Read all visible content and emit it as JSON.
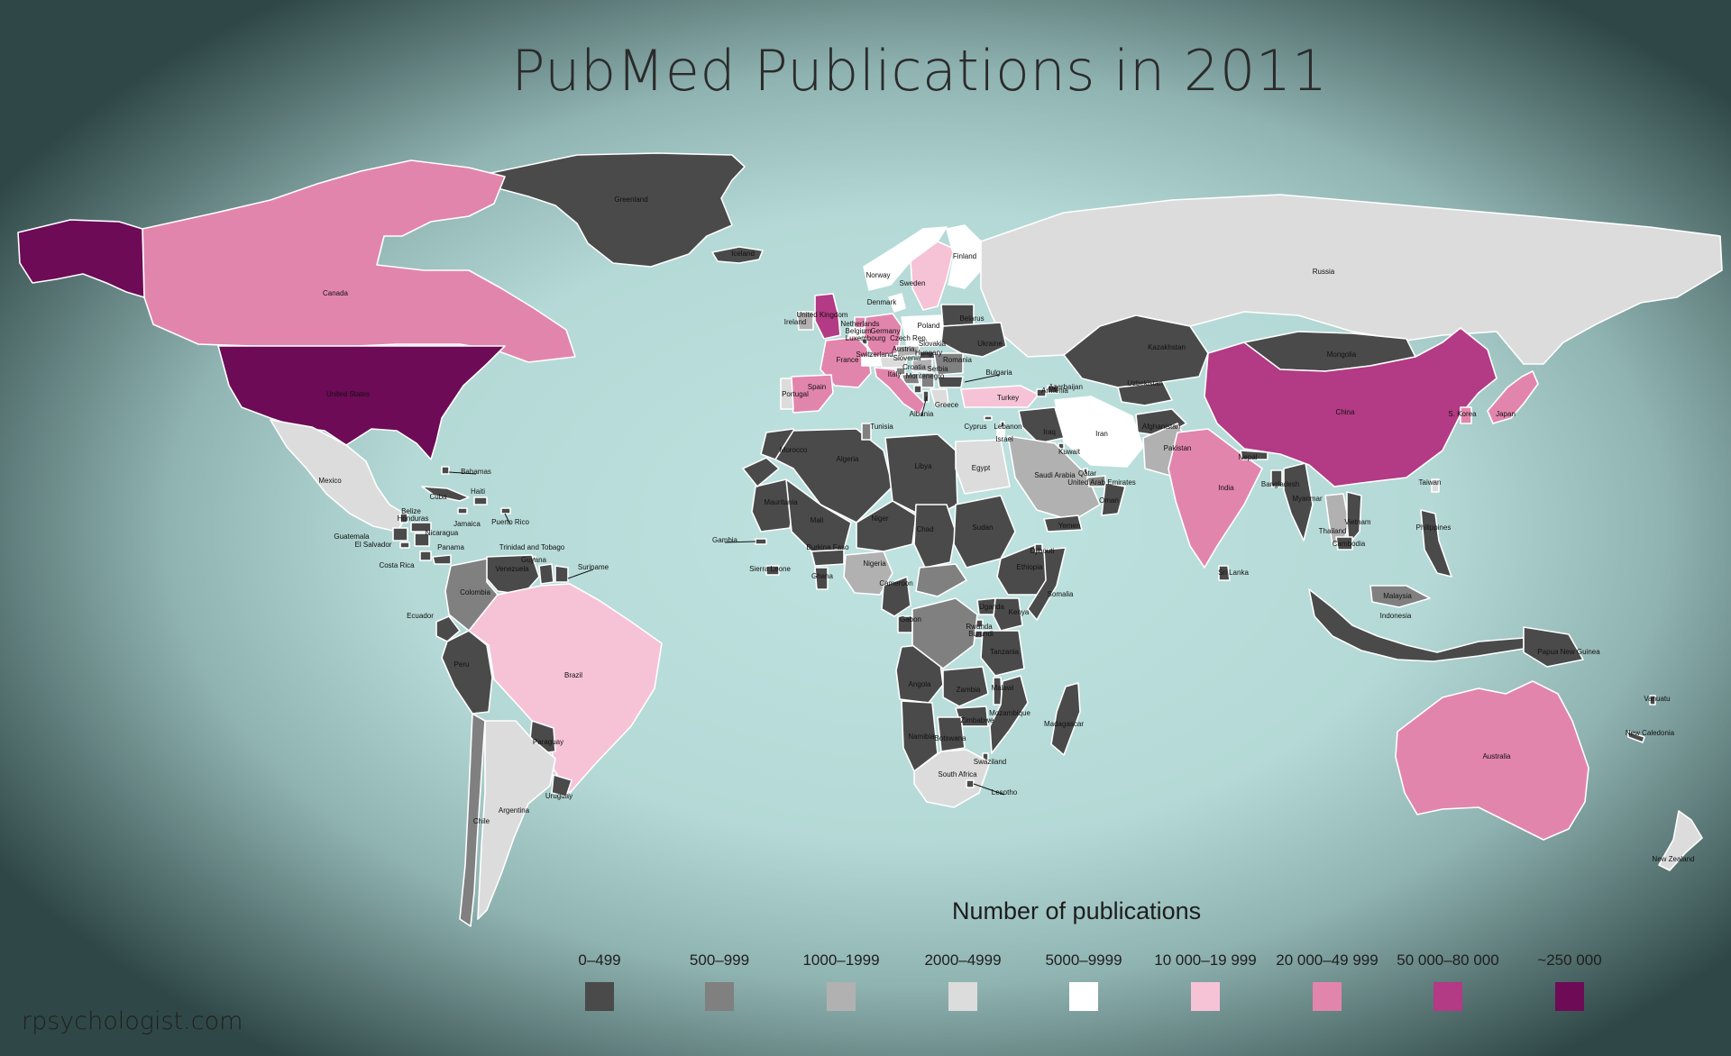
{
  "title": "PubMed Publications in 2011",
  "legend": {
    "title": "Number of publications",
    "bins": [
      {
        "label": "0–499",
        "color": "#4a4a4a"
      },
      {
        "label": "500–999",
        "color": "#808080"
      },
      {
        "label": "1000–1999",
        "color": "#b1b1b1"
      },
      {
        "label": "2000–4999",
        "color": "#dcdcdc"
      },
      {
        "label": "5000–9999",
        "color": "#ffffff"
      },
      {
        "label": "10 000–19 999",
        "color": "#f6c3d6"
      },
      {
        "label": "20 000–49 999",
        "color": "#e285ad"
      },
      {
        "label": "50 000–80 000",
        "color": "#b33a84"
      },
      {
        "label": "~250 000",
        "color": "#6d0b57"
      }
    ]
  },
  "credit": "rpsychologist.com",
  "countries": [
    {
      "name": "Greenland",
      "bin": 0
    },
    {
      "name": "Iceland",
      "bin": 0
    },
    {
      "name": "Canada",
      "bin": 6
    },
    {
      "name": "United States",
      "bin": 8
    },
    {
      "name": "Mexico",
      "bin": 3
    },
    {
      "name": "Bahamas",
      "bin": 0
    },
    {
      "name": "Cuba",
      "bin": 0
    },
    {
      "name": "Haiti",
      "bin": 0
    },
    {
      "name": "Belize",
      "bin": 0
    },
    {
      "name": "Honduras",
      "bin": 0
    },
    {
      "name": "Jamaica",
      "bin": 0
    },
    {
      "name": "Puerto Rico",
      "bin": 0
    },
    {
      "name": "Guatemala",
      "bin": 0
    },
    {
      "name": "Nicaragua",
      "bin": 0
    },
    {
      "name": "El Salvador",
      "bin": 0
    },
    {
      "name": "Panama",
      "bin": 0
    },
    {
      "name": "Trinidad and Tobago",
      "bin": 0
    },
    {
      "name": "Costa Rica",
      "bin": 0
    },
    {
      "name": "Guyana",
      "bin": 0
    },
    {
      "name": "Suriname",
      "bin": 0
    },
    {
      "name": "Venezuela",
      "bin": 0
    },
    {
      "name": "Colombia",
      "bin": 1
    },
    {
      "name": "Ecuador",
      "bin": 0
    },
    {
      "name": "Peru",
      "bin": 0
    },
    {
      "name": "Brazil",
      "bin": 5
    },
    {
      "name": "Paraguay",
      "bin": 0
    },
    {
      "name": "Chile",
      "bin": 1
    },
    {
      "name": "Argentina",
      "bin": 3
    },
    {
      "name": "Uruguay",
      "bin": 0
    },
    {
      "name": "Norway",
      "bin": 4
    },
    {
      "name": "Sweden",
      "bin": 5
    },
    {
      "name": "Finland",
      "bin": 4
    },
    {
      "name": "Denmark",
      "bin": 4
    },
    {
      "name": "Russia",
      "bin": 3
    },
    {
      "name": "United Kingdom",
      "bin": 7
    },
    {
      "name": "Ireland",
      "bin": 2
    },
    {
      "name": "Netherlands",
      "bin": 6
    },
    {
      "name": "Belgium",
      "bin": 4
    },
    {
      "name": "Germany",
      "bin": 6
    },
    {
      "name": "Luxembourg",
      "bin": 0
    },
    {
      "name": "Poland",
      "bin": 4
    },
    {
      "name": "Czech Rep.",
      "bin": 2
    },
    {
      "name": "Slovakia",
      "bin": 0
    },
    {
      "name": "France",
      "bin": 6
    },
    {
      "name": "Switzerland",
      "bin": 4
    },
    {
      "name": "Austria",
      "bin": 3
    },
    {
      "name": "Hungary",
      "bin": 2
    },
    {
      "name": "Slovenia",
      "bin": 1
    },
    {
      "name": "Croatia",
      "bin": 1
    },
    {
      "name": "Serbia",
      "bin": 1
    },
    {
      "name": "Montenegro",
      "bin": 0
    },
    {
      "name": "Italy",
      "bin": 6
    },
    {
      "name": "Romania",
      "bin": 1
    },
    {
      "name": "Bulgaria",
      "bin": 0
    },
    {
      "name": "Belarus",
      "bin": 0
    },
    {
      "name": "Ukraine",
      "bin": 0
    },
    {
      "name": "Spain",
      "bin": 6
    },
    {
      "name": "Portugal",
      "bin": 3
    },
    {
      "name": "Greece",
      "bin": 3
    },
    {
      "name": "Albania",
      "bin": 0
    },
    {
      "name": "Turkey",
      "bin": 5
    },
    {
      "name": "Cyprus",
      "bin": 0
    },
    {
      "name": "Lebanon",
      "bin": 0
    },
    {
      "name": "Israel",
      "bin": 4
    },
    {
      "name": "Azerbaijan",
      "bin": 0
    },
    {
      "name": "Armenia",
      "bin": 0
    },
    {
      "name": "Kazakhstan",
      "bin": 0
    },
    {
      "name": "Mongolia",
      "bin": 0
    },
    {
      "name": "Uzbekistan",
      "bin": 0
    },
    {
      "name": "Afghanistan",
      "bin": 0
    },
    {
      "name": "Iran",
      "bin": 4
    },
    {
      "name": "Iraq",
      "bin": 0
    },
    {
      "name": "Kuwait",
      "bin": 0
    },
    {
      "name": "Qatar",
      "bin": 0
    },
    {
      "name": "Saudi Arabia",
      "bin": 2
    },
    {
      "name": "United Arab Emirates",
      "bin": 1
    },
    {
      "name": "Oman",
      "bin": 0
    },
    {
      "name": "Yemen",
      "bin": 0
    },
    {
      "name": "Pakistan",
      "bin": 2
    },
    {
      "name": "India",
      "bin": 6
    },
    {
      "name": "Nepal",
      "bin": 0
    },
    {
      "name": "Bangladesh",
      "bin": 0
    },
    {
      "name": "Sri Lanka",
      "bin": 0
    },
    {
      "name": "Myanmar",
      "bin": 0
    },
    {
      "name": "China",
      "bin": 7
    },
    {
      "name": "S. Korea",
      "bin": 6
    },
    {
      "name": "Japan",
      "bin": 6
    },
    {
      "name": "Taiwan",
      "bin": 3
    },
    {
      "name": "Thailand",
      "bin": 2
    },
    {
      "name": "Vietnam",
      "bin": 0
    },
    {
      "name": "Cambodia",
      "bin": 0
    },
    {
      "name": "Philippines",
      "bin": 0
    },
    {
      "name": "Malaysia",
      "bin": 1
    },
    {
      "name": "Indonesia",
      "bin": 0
    },
    {
      "name": "Papua New Guinea",
      "bin": 0
    },
    {
      "name": "Australia",
      "bin": 6
    },
    {
      "name": "New Zealand",
      "bin": 3
    },
    {
      "name": "Vanuatu",
      "bin": 0
    },
    {
      "name": "New Caledonia",
      "bin": 0
    },
    {
      "name": "Morocco",
      "bin": 0
    },
    {
      "name": "Algeria",
      "bin": 0
    },
    {
      "name": "Tunisia",
      "bin": 1
    },
    {
      "name": "Libya",
      "bin": 0
    },
    {
      "name": "Egypt",
      "bin": 3
    },
    {
      "name": "Mauritania",
      "bin": 0
    },
    {
      "name": "Mali",
      "bin": 0
    },
    {
      "name": "Niger",
      "bin": 0
    },
    {
      "name": "Chad",
      "bin": 0
    },
    {
      "name": "Sudan",
      "bin": 0
    },
    {
      "name": "Gambia",
      "bin": 0
    },
    {
      "name": "Burkina Faso",
      "bin": 0
    },
    {
      "name": "Sierra Leone",
      "bin": 0
    },
    {
      "name": "Ghana",
      "bin": 0
    },
    {
      "name": "Nigeria",
      "bin": 2
    },
    {
      "name": "Cameroon",
      "bin": 0
    },
    {
      "name": "Ethiopia",
      "bin": 0
    },
    {
      "name": "Djibouti",
      "bin": 0
    },
    {
      "name": "Somalia",
      "bin": 0
    },
    {
      "name": "Gabon",
      "bin": 0
    },
    {
      "name": "Uganda",
      "bin": 0
    },
    {
      "name": "Kenya",
      "bin": 0
    },
    {
      "name": "Rwanda",
      "bin": 0
    },
    {
      "name": "Burundi",
      "bin": 0
    },
    {
      "name": "Tanzania",
      "bin": 0
    },
    {
      "name": "Angola",
      "bin": 0
    },
    {
      "name": "Zambia",
      "bin": 0
    },
    {
      "name": "Malawi",
      "bin": 0
    },
    {
      "name": "Mozambique",
      "bin": 0
    },
    {
      "name": "Zimbabwe",
      "bin": 0
    },
    {
      "name": "Madagascar",
      "bin": 0
    },
    {
      "name": "Namibia",
      "bin": 0
    },
    {
      "name": "Botswana",
      "bin": 0
    },
    {
      "name": "Swaziland",
      "bin": 0
    },
    {
      "name": "South Africa",
      "bin": 3
    },
    {
      "name": "Lesotho",
      "bin": 0
    }
  ]
}
